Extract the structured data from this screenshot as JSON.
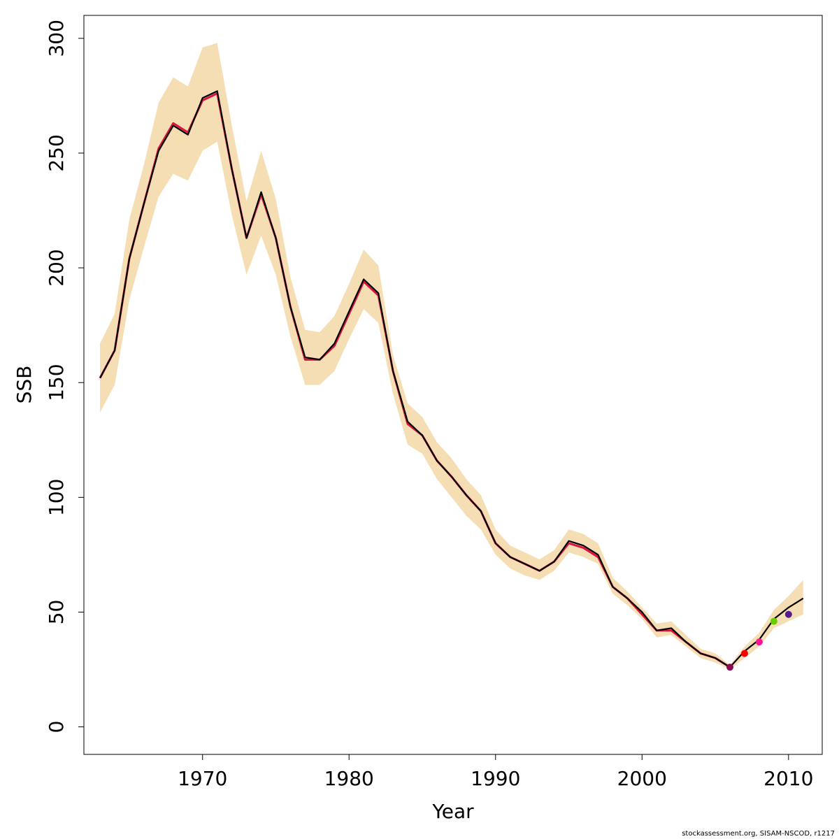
{
  "chart_data": {
    "type": "line",
    "title": "",
    "xlabel": "Year",
    "ylabel": "SSB",
    "xlim": [
      1961.9,
      2012.3
    ],
    "ylim": [
      -12,
      310
    ],
    "x_ticks": [
      1970,
      1980,
      1990,
      2000,
      2010
    ],
    "y_ticks": [
      0,
      50,
      100,
      150,
      200,
      250,
      300
    ],
    "grid": false,
    "legend": "none",
    "band_color": "#F5DEB3",
    "years": [
      1963,
      1964,
      1965,
      1966,
      1967,
      1968,
      1969,
      1970,
      1971,
      1972,
      1973,
      1974,
      1975,
      1976,
      1977,
      1978,
      1979,
      1980,
      1981,
      1982,
      1983,
      1984,
      1985,
      1986,
      1987,
      1988,
      1989,
      1990,
      1991,
      1992,
      1993,
      1994,
      1995,
      1996,
      1997,
      1998,
      1999,
      2000,
      2001,
      2002,
      2003,
      2004,
      2005,
      2006
    ],
    "upper": [
      167,
      180,
      221,
      245,
      272,
      283,
      279,
      296,
      298,
      262,
      229,
      251,
      230,
      196,
      173,
      172,
      179,
      193,
      208,
      201,
      162,
      141,
      135,
      124,
      117,
      108,
      101,
      86,
      79,
      76,
      73,
      77,
      86,
      84,
      80,
      65,
      59,
      52,
      45,
      46,
      40,
      34,
      32,
      27
    ],
    "lower": [
      137,
      149,
      186,
      209,
      231,
      241,
      238,
      251,
      255,
      223,
      197,
      214,
      197,
      170,
      149,
      149,
      155,
      169,
      182,
      176,
      145,
      123,
      119,
      108,
      100,
      92,
      86,
      75,
      69,
      66,
      64,
      68,
      76,
      74,
      71,
      58,
      53,
      47,
      39,
      40,
      35,
      30,
      28,
      25
    ],
    "series": [
      {
        "color": "#DC143C",
        "x": [
          1963,
          1964,
          1965,
          1966,
          1967,
          1968,
          1969,
          1970,
          1971,
          1972,
          1973,
          1974,
          1975,
          1976,
          1977,
          1978,
          1979,
          1980,
          1981,
          1982,
          1983,
          1984,
          1985,
          1986,
          1987,
          1988,
          1989,
          1990,
          1991,
          1992,
          1993,
          1994,
          1995,
          1996,
          1997,
          1998,
          1999,
          2000,
          2001,
          2002,
          2003,
          2004,
          2005,
          2006
        ],
        "y": [
          152,
          164,
          204,
          228,
          252,
          263,
          259,
          273,
          276,
          243,
          213,
          232,
          213,
          183,
          160,
          160,
          166,
          180,
          194,
          188,
          155,
          132,
          127,
          116,
          109,
          101,
          94,
          80,
          74,
          71,
          68,
          72,
          80,
          78,
          74,
          61,
          56,
          49,
          42,
          42,
          37,
          32,
          30,
          26
        ]
      },
      {
        "color": "#000000",
        "x": [
          1963,
          1964,
          1965,
          1966,
          1967,
          1968,
          1969,
          1970,
          1971,
          1972,
          1973,
          1974,
          1975,
          1976,
          1977,
          1978,
          1979,
          1980,
          1981,
          1982,
          1983,
          1984,
          1985,
          1986,
          1987,
          1988,
          1989,
          1990,
          1991,
          1992,
          1993,
          1994,
          1995,
          1996,
          1997,
          1998,
          1999,
          2000,
          2001,
          2002,
          2003,
          2004,
          2005,
          2006,
          2007,
          2008,
          2009,
          2010,
          2011
        ],
        "y": [
          152,
          164,
          204,
          228,
          251,
          262,
          258,
          274,
          277,
          243,
          213,
          233,
          213,
          183,
          161,
          160,
          167,
          181,
          195,
          189,
          155,
          133,
          127,
          116,
          109,
          101,
          94,
          80,
          74,
          71,
          68,
          72,
          81,
          79,
          75,
          61,
          56,
          50,
          42,
          43,
          37,
          32,
          30,
          26,
          33,
          38,
          47,
          52,
          56
        ],
        "band_years": [
          2006,
          2007,
          2008,
          2009,
          2010,
          2011
        ],
        "band_upper": [
          27,
          35,
          41,
          51,
          57,
          64
        ],
        "band_lower": [
          25,
          30,
          35,
          43,
          46,
          49
        ]
      }
    ],
    "points": [
      {
        "x": 2006,
        "y": 26,
        "color": "#8B0A50"
      },
      {
        "x": 2007,
        "y": 32,
        "color": "#FF0000"
      },
      {
        "x": 2008,
        "y": 37,
        "color": "#FF1493"
      },
      {
        "x": 2009,
        "y": 46,
        "color": "#66CD00"
      },
      {
        "x": 2010,
        "y": 49,
        "color": "#551A8B"
      }
    ]
  },
  "footer": {
    "credit": "stockassessment.org, SISAM-NSCOD, r1217"
  }
}
